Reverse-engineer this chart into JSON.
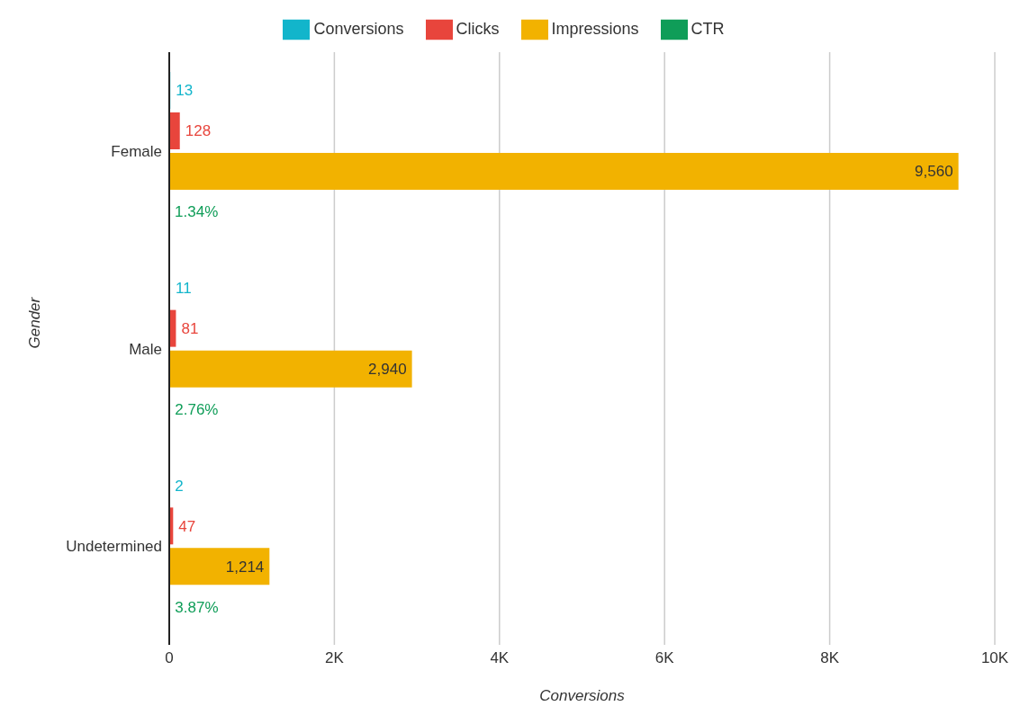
{
  "chart_data": {
    "type": "bar",
    "orientation": "horizontal",
    "categories": [
      "Female",
      "Male",
      "Undetermined"
    ],
    "series": [
      {
        "name": "Conversions",
        "color": "#12b5cb",
        "values": [
          13,
          11,
          2
        ],
        "value_labels": [
          "13",
          "11",
          "2"
        ]
      },
      {
        "name": "Clicks",
        "color": "#e8453c",
        "values": [
          128,
          81,
          47
        ],
        "value_labels": [
          "128",
          "81",
          "47"
        ]
      },
      {
        "name": "Impressions",
        "color": "#f2b200",
        "values": [
          9560,
          2940,
          1214
        ],
        "value_labels": [
          "9,560",
          "2,940",
          "1,214"
        ]
      },
      {
        "name": "CTR",
        "color": "#0f9d58",
        "values": [
          1.34,
          2.76,
          3.87
        ],
        "value_labels": [
          "1.34%",
          "2.76%",
          "3.87%"
        ]
      }
    ],
    "xlim": [
      0,
      10000
    ],
    "xticks": [
      0,
      {
        "value": 2000,
        "label": "2K"
      },
      {
        "value": 4000,
        "label": "4K"
      },
      {
        "value": 6000,
        "label": "6K"
      },
      {
        "value": 8000,
        "label": "8K"
      },
      {
        "value": 10000,
        "label": "10K"
      }
    ],
    "xlabel": "Conversions",
    "ylabel": "Gender",
    "grid": "x",
    "legend": "top"
  }
}
